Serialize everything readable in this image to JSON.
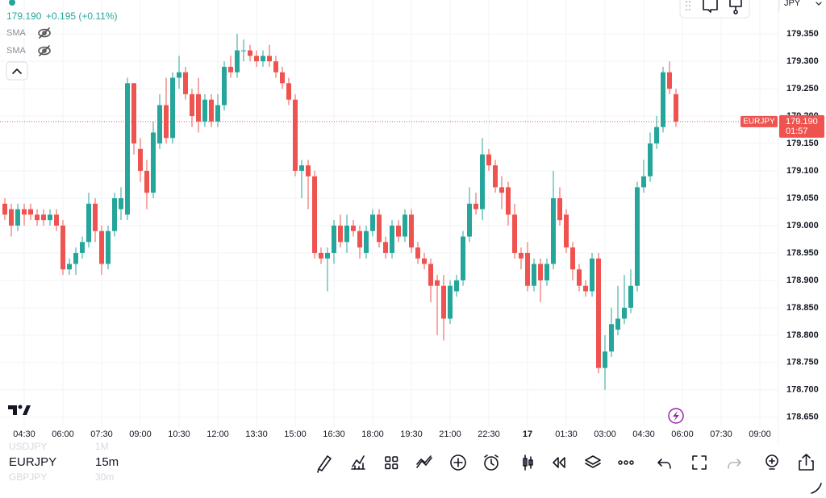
{
  "header": {
    "price": "179.190",
    "change": "+0.195 (+0.11%)",
    "indicators": [
      "SMA",
      "SMA"
    ],
    "currency": "JPY"
  },
  "symbols": [
    {
      "symbol": "USDJPY",
      "interval": "1M"
    },
    {
      "symbol": "EURJPY",
      "interval": "15m"
    },
    {
      "symbol": "GBPJPY",
      "interval": "30m"
    }
  ],
  "chart_data": {
    "type": "candlestick",
    "symbol": "EURJPY",
    "countdown": "01:57",
    "up_color": "#26a69a",
    "down_color": "#ef5350",
    "grid": true,
    "last_price": {
      "value": 179.19,
      "label": "179.190"
    },
    "ylim": [
      178.632,
      179.412
    ],
    "yticks": [
      {
        "value": 179.35,
        "label": "179.350"
      },
      {
        "value": 179.3,
        "label": "179.300"
      },
      {
        "value": 179.25,
        "label": "179.250"
      },
      {
        "value": 179.2,
        "label": "179.200"
      },
      {
        "value": 179.15,
        "label": "179.150"
      },
      {
        "value": 179.1,
        "label": "179.100"
      },
      {
        "value": 179.05,
        "label": "179.050"
      },
      {
        "value": 179.0,
        "label": "179.000"
      },
      {
        "value": 178.95,
        "label": "178.950"
      },
      {
        "value": 178.9,
        "label": "178.900"
      },
      {
        "value": 178.85,
        "label": "178.850"
      },
      {
        "value": 178.8,
        "label": "178.800"
      },
      {
        "value": 178.75,
        "label": "178.750"
      },
      {
        "value": 178.7,
        "label": "178.700"
      },
      {
        "value": 178.65,
        "label": "178.650"
      }
    ],
    "categories": [
      null,
      null,
      null,
      "04:30",
      null,
      null,
      null,
      null,
      null,
      "06:00",
      null,
      null,
      null,
      null,
      null,
      "07:30",
      null,
      null,
      null,
      null,
      null,
      "09:00",
      null,
      null,
      null,
      null,
      null,
      "10:30",
      null,
      null,
      null,
      null,
      null,
      "12:00",
      null,
      null,
      null,
      null,
      null,
      "13:30",
      null,
      null,
      null,
      null,
      null,
      "15:00",
      null,
      null,
      null,
      null,
      null,
      "16:30",
      null,
      null,
      null,
      null,
      null,
      "18:00",
      null,
      null,
      null,
      null,
      null,
      "19:30",
      null,
      null,
      null,
      null,
      null,
      "21:00",
      null,
      null,
      null,
      null,
      null,
      "22:30",
      null,
      null,
      null,
      null,
      null,
      "17",
      null,
      null,
      null,
      null,
      null,
      "01:30",
      null,
      null,
      null,
      null,
      null,
      "03:00",
      null,
      null,
      null,
      null,
      null,
      "04:30",
      null,
      null,
      null,
      null,
      null,
      "06:00",
      null,
      null,
      null,
      null,
      null,
      "07:30",
      null,
      null,
      null,
      null,
      null,
      "09:00"
    ],
    "open": [
      179.04,
      179.03,
      179.0,
      179.03,
      179.03,
      179.02,
      179.02,
      179.01,
      179.02,
      179.0,
      178.92,
      178.93,
      178.95,
      178.97,
      179.04,
      178.99,
      178.93,
      178.99,
      179.03,
      179.02,
      179.26,
      179.14,
      179.1,
      179.06,
      179.15,
      179.22,
      179.16,
      179.27,
      179.28,
      179.24,
      179.24,
      179.19,
      179.23,
      179.19,
      179.22,
      179.29,
      179.28,
      179.32,
      179.32,
      179.31,
      179.3,
      179.31,
      179.3,
      179.28,
      179.26,
      179.23,
      179.1,
      179.11,
      179.09,
      178.95,
      178.94,
      178.95,
      179.0,
      178.97,
      179.0,
      178.99,
      178.95,
      178.99,
      179.02,
      178.97,
      178.95,
      179.0,
      178.98,
      179.02,
      178.96,
      178.94,
      178.93,
      178.9,
      178.89,
      178.83,
      178.88,
      178.9,
      178.98,
      179.04,
      179.03,
      179.13,
      179.11,
      179.07,
      179.07,
      179.02,
      178.95,
      178.95,
      178.89,
      178.93,
      178.9,
      178.93,
      179.05,
      179.02,
      178.96,
      178.92,
      178.89,
      178.88,
      178.94,
      178.74,
      178.77,
      178.81,
      178.83,
      178.85,
      178.89,
      179.07,
      179.09,
      179.15,
      179.18,
      179.28,
      179.24,
      null,
      null,
      null,
      null,
      null,
      null,
      null,
      null,
      null,
      null,
      null,
      null,
      null
    ],
    "high": [
      179.05,
      179.04,
      179.04,
      179.04,
      179.04,
      179.03,
      179.03,
      179.03,
      179.03,
      179.01,
      178.94,
      178.96,
      178.98,
      179.06,
      179.05,
      179.0,
      179.0,
      179.06,
      179.07,
      179.27,
      179.26,
      179.16,
      179.12,
      179.19,
      179.24,
      179.27,
      179.28,
      179.31,
      179.29,
      179.25,
      179.27,
      179.24,
      179.24,
      179.24,
      179.3,
      179.31,
      179.35,
      179.34,
      179.33,
      179.32,
      179.32,
      179.33,
      179.31,
      179.29,
      179.27,
      179.24,
      179.12,
      179.12,
      179.1,
      178.96,
      178.96,
      179.01,
      179.02,
      179.02,
      179.01,
      179.0,
      179.0,
      179.03,
      179.03,
      178.98,
      179.01,
      179.01,
      179.03,
      179.03,
      178.97,
      178.95,
      178.94,
      178.91,
      178.91,
      178.9,
      178.91,
      178.99,
      179.07,
      179.06,
      179.16,
      179.14,
      179.12,
      179.09,
      179.08,
      179.04,
      178.96,
      178.97,
      178.94,
      178.94,
      178.94,
      179.1,
      179.07,
      179.03,
      178.97,
      178.93,
      178.9,
      178.95,
      178.95,
      178.8,
      178.85,
      178.89,
      178.91,
      178.92,
      179.08,
      179.12,
      179.17,
      179.2,
      179.29,
      179.3,
      179.25,
      null,
      null,
      null,
      null,
      null,
      null,
      null,
      null,
      null,
      null,
      null,
      null,
      null
    ],
    "low": [
      179.01,
      178.98,
      178.99,
      179.0,
      179.01,
      179.0,
      179.0,
      179.0,
      178.99,
      178.91,
      178.91,
      178.91,
      178.94,
      178.96,
      178.97,
      178.91,
      178.92,
      178.98,
      179.01,
      179.01,
      179.13,
      179.08,
      179.03,
      179.05,
      179.14,
      179.15,
      179.15,
      179.25,
      179.23,
      179.18,
      179.17,
      179.18,
      179.18,
      179.18,
      179.21,
      179.27,
      179.27,
      179.3,
      179.3,
      179.29,
      179.29,
      179.29,
      179.27,
      179.25,
      179.22,
      179.09,
      179.05,
      179.03,
      178.94,
      178.93,
      178.88,
      178.93,
      178.96,
      178.95,
      178.98,
      178.94,
      178.94,
      178.98,
      178.96,
      178.94,
      178.94,
      178.97,
      178.97,
      178.95,
      178.93,
      178.92,
      178.86,
      178.8,
      178.79,
      178.82,
      178.87,
      178.89,
      178.97,
      179.02,
      179.01,
      179.1,
      179.06,
      179.03,
      179.0,
      178.94,
      178.92,
      178.88,
      178.88,
      178.86,
      178.89,
      178.92,
      179.0,
      178.95,
      178.9,
      178.88,
      178.87,
      178.87,
      178.73,
      178.7,
      178.76,
      178.8,
      178.82,
      178.84,
      178.88,
      179.06,
      179.08,
      179.14,
      179.17,
      179.24,
      179.18,
      null,
      null,
      null,
      null,
      null,
      null,
      null,
      null,
      null,
      null,
      null,
      null,
      null
    ],
    "close": [
      179.02,
      179.0,
      179.03,
      179.02,
      179.02,
      179.01,
      179.01,
      179.02,
      179.0,
      178.92,
      178.93,
      178.95,
      178.97,
      179.04,
      178.99,
      178.93,
      178.99,
      179.05,
      179.05,
      179.26,
      179.15,
      179.1,
      179.06,
      179.17,
      179.22,
      179.16,
      179.27,
      179.28,
      179.24,
      179.2,
      179.19,
      179.23,
      179.19,
      179.22,
      179.29,
      179.28,
      179.32,
      179.32,
      179.31,
      179.3,
      179.31,
      179.3,
      179.28,
      179.26,
      179.23,
      179.1,
      179.11,
      179.09,
      178.95,
      178.94,
      178.95,
      179.0,
      178.97,
      179.0,
      178.99,
      178.96,
      178.99,
      179.02,
      178.97,
      178.95,
      179.0,
      178.98,
      179.02,
      178.96,
      178.94,
      178.93,
      178.89,
      178.89,
      178.83,
      178.89,
      178.9,
      178.98,
      179.04,
      179.03,
      179.13,
      179.11,
      179.07,
      179.06,
      179.02,
      178.95,
      178.94,
      178.89,
      178.93,
      178.9,
      178.93,
      179.05,
      179.01,
      178.96,
      178.92,
      178.89,
      178.88,
      178.94,
      178.74,
      178.77,
      178.82,
      178.83,
      178.85,
      178.89,
      179.07,
      179.09,
      179.15,
      179.18,
      179.28,
      179.25,
      179.19,
      null,
      null,
      null,
      null,
      null,
      null,
      null,
      null,
      null,
      null,
      null,
      null,
      null
    ]
  }
}
